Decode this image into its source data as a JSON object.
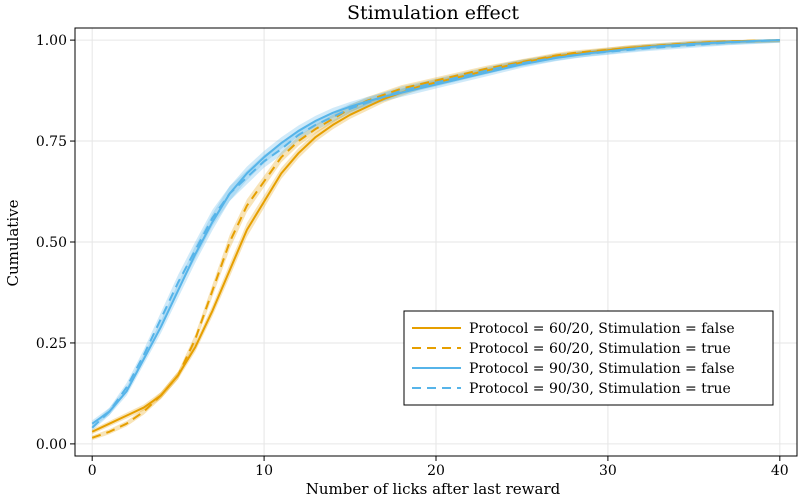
{
  "chart_data": {
    "type": "line",
    "title": "Stimulation effect",
    "xlabel": "Number of licks after last reward",
    "ylabel": "Cumulative",
    "xlim": [
      -1,
      41
    ],
    "ylim": [
      -0.03,
      1.03
    ],
    "xticks": [
      0,
      10,
      20,
      30,
      40
    ],
    "xtick_labels": [
      "0",
      "10",
      "20",
      "30",
      "40"
    ],
    "yticks": [
      0,
      0.25,
      0.5,
      0.75,
      1
    ],
    "ytick_labels": [
      "0.00",
      "0.25",
      "0.50",
      "0.75",
      "1.00"
    ],
    "grid": true,
    "legend_position": "bottom-right",
    "colors": {
      "orange": "#E69F00",
      "blue": "#56B4E9"
    },
    "x": [
      0,
      1,
      2,
      3,
      4,
      5,
      6,
      7,
      8,
      9,
      10,
      11,
      12,
      13,
      14,
      15,
      16,
      17,
      18,
      19,
      20,
      21,
      22,
      23,
      24,
      25,
      26,
      27,
      28,
      29,
      30,
      31,
      32,
      33,
      34,
      35,
      36,
      37,
      38,
      39,
      40
    ],
    "series": [
      {
        "name": "Protocol = 60/20, Stimulation = false",
        "color": "#E69F00",
        "dash": "solid",
        "band": 0.018,
        "values": [
          0.03,
          0.05,
          0.07,
          0.09,
          0.12,
          0.17,
          0.24,
          0.33,
          0.43,
          0.53,
          0.6,
          0.67,
          0.72,
          0.76,
          0.79,
          0.815,
          0.835,
          0.855,
          0.87,
          0.885,
          0.895,
          0.905,
          0.915,
          0.925,
          0.935,
          0.945,
          0.952,
          0.96,
          0.965,
          0.97,
          0.975,
          0.98,
          0.983,
          0.986,
          0.989,
          0.992,
          0.994,
          0.996,
          0.998,
          0.999,
          1.0
        ]
      },
      {
        "name": "Protocol = 60/20, Stimulation = true",
        "color": "#E69F00",
        "dash": "dashed",
        "band": 0.018,
        "values": [
          0.015,
          0.03,
          0.05,
          0.08,
          0.12,
          0.17,
          0.26,
          0.38,
          0.5,
          0.59,
          0.65,
          0.71,
          0.75,
          0.78,
          0.805,
          0.83,
          0.85,
          0.865,
          0.88,
          0.89,
          0.9,
          0.91,
          0.92,
          0.93,
          0.938,
          0.946,
          0.954,
          0.962,
          0.968,
          0.972,
          0.976,
          0.98,
          0.984,
          0.987,
          0.99,
          0.993,
          0.995,
          0.997,
          0.998,
          0.999,
          1.0
        ]
      },
      {
        "name": "Protocol = 90/30, Stimulation = false",
        "color": "#56B4E9",
        "dash": "solid",
        "band": 0.022,
        "values": [
          0.05,
          0.08,
          0.13,
          0.21,
          0.29,
          0.38,
          0.47,
          0.55,
          0.62,
          0.67,
          0.71,
          0.745,
          0.775,
          0.8,
          0.82,
          0.835,
          0.848,
          0.86,
          0.87,
          0.88,
          0.89,
          0.9,
          0.91,
          0.92,
          0.93,
          0.94,
          0.948,
          0.956,
          0.962,
          0.968,
          0.972,
          0.977,
          0.981,
          0.985,
          0.988,
          0.991,
          0.993,
          0.995,
          0.997,
          0.999,
          1.0
        ]
      },
      {
        "name": "Protocol = 90/30, Stimulation = true",
        "color": "#56B4E9",
        "dash": "dashed",
        "band": 0.022,
        "values": [
          0.04,
          0.08,
          0.14,
          0.22,
          0.31,
          0.4,
          0.48,
          0.56,
          0.62,
          0.66,
          0.7,
          0.73,
          0.765,
          0.79,
          0.81,
          0.83,
          0.845,
          0.86,
          0.875,
          0.885,
          0.895,
          0.905,
          0.915,
          0.925,
          0.935,
          0.943,
          0.95,
          0.957,
          0.963,
          0.967,
          0.971,
          0.975,
          0.979,
          0.982,
          0.985,
          0.988,
          0.991,
          0.994,
          0.996,
          0.998,
          1.0
        ]
      }
    ]
  }
}
